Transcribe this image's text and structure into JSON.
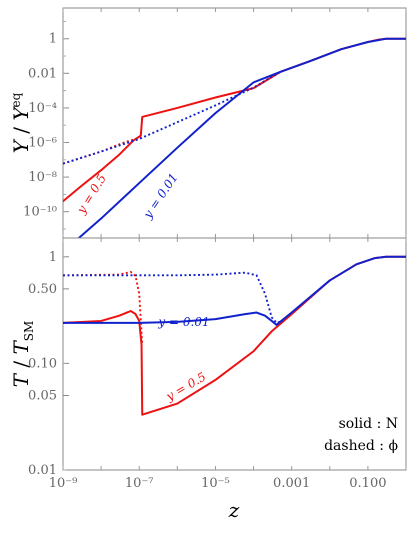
{
  "chart_data": {
    "type": "line",
    "colors": {
      "red": "#ee1111",
      "blue": "#1122cc"
    },
    "x_scale": "log",
    "xlim": [
      1e-09,
      1
    ],
    "xlabel": "z",
    "x_ticks": [
      {
        "value": 1e-09,
        "label": "10⁻⁹"
      },
      {
        "value": 1e-07,
        "label": "10⁻⁷"
      },
      {
        "value": 1e-05,
        "label": "10⁻⁵"
      },
      {
        "value": 0.001,
        "label": "0.001"
      },
      {
        "value": 0.1,
        "label": "0.100"
      }
    ],
    "panels": [
      {
        "ylabel": "Y / Y^eq",
        "y_scale": "log",
        "ylim": [
          3e-12,
          60
        ],
        "y_ticks": [
          {
            "value": 1,
            "label": "1"
          },
          {
            "value": 0.01,
            "label": "0.01"
          },
          {
            "value": 0.0001,
            "label": "10⁻⁴"
          },
          {
            "value": 1e-06,
            "label": "10⁻⁶"
          },
          {
            "value": 1e-08,
            "label": "10⁻⁸"
          },
          {
            "value": 1e-10,
            "label": "10⁻¹⁰"
          }
        ],
        "annotations": [
          {
            "text": "y = 0.5",
            "color": "red"
          },
          {
            "text": "y = 0.01",
            "color": "blue"
          }
        ],
        "series": [
          {
            "color": "red",
            "dash": false,
            "points": [
              [
                1e-09,
                4e-10
              ],
              [
                3e-09,
                3e-09
              ],
              [
                1e-08,
                2.5e-08
              ],
              [
                3e-08,
                2e-07
              ],
              [
                7e-08,
                1.3e-06
              ],
              [
                1.1e-07,
                2.5e-06
              ],
              [
                1.2e-07,
                3e-05
              ],
              [
                1e-06,
                0.0001
              ],
              [
                1e-05,
                0.0004
              ],
              [
                0.0001,
                0.0014
              ],
              [
                0.0005,
                0.012
              ],
              [
                0.003,
                0.05
              ],
              [
                0.02,
                0.25
              ],
              [
                0.1,
                0.65
              ],
              [
                0.2,
                0.9
              ],
              [
                0.3,
                1
              ],
              [
                1,
                1
              ]
            ]
          },
          {
            "color": "red",
            "dash": true,
            "points": [
              [
                1e-09,
                6e-08
              ],
              [
                1e-08,
                3e-07
              ],
              [
                4e-08,
                1e-06
              ],
              [
                8e-08,
                1.6e-06
              ],
              [
                1.1e-07,
                2.2e-06
              ]
            ]
          },
          {
            "color": "blue",
            "dash": false,
            "points": [
              [
                2.6e-09,
                3e-12
              ],
              [
                1e-08,
                4e-11
              ],
              [
                1e-07,
                4.5e-09
              ],
              [
                1e-06,
                5e-07
              ],
              [
                1e-05,
                5e-05
              ],
              [
                0.0001,
                0.003
              ],
              [
                0.0005,
                0.012
              ],
              [
                0.003,
                0.05
              ],
              [
                0.02,
                0.25
              ],
              [
                0.1,
                0.65
              ],
              [
                0.3,
                1
              ],
              [
                1,
                1
              ]
            ]
          },
          {
            "color": "blue",
            "dash": true,
            "points": [
              [
                1e-09,
                6e-08
              ],
              [
                1e-08,
                3e-07
              ],
              [
                1e-07,
                1.6e-06
              ],
              [
                1e-06,
                1.5e-05
              ],
              [
                1e-05,
                0.00014
              ],
              [
                0.0001,
                0.0015
              ],
              [
                0.0005,
                0.012
              ]
            ]
          }
        ]
      },
      {
        "ylabel": "T / T_SM",
        "y_scale": "log",
        "ylim": [
          0.01,
          1.5
        ],
        "y_ticks": [
          {
            "value": 1,
            "label": "1"
          },
          {
            "value": 0.5,
            "label": "0.50"
          },
          {
            "value": 0.1,
            "label": "0.10"
          },
          {
            "value": 0.05,
            "label": "0.05"
          },
          {
            "value": 0.01,
            "label": "0.01"
          }
        ],
        "annotations": [
          {
            "text": "y = 0.01",
            "color": "blue"
          },
          {
            "text": "y = 0.5",
            "color": "red"
          }
        ],
        "legend": [
          "solid : N",
          "dashed : ϕ"
        ],
        "series": [
          {
            "color": "red",
            "dash": false,
            "points": [
              [
                1e-09,
                0.24
              ],
              [
                1e-08,
                0.25
              ],
              [
                3e-08,
                0.28
              ],
              [
                6e-08,
                0.31
              ],
              [
                8e-08,
                0.29
              ],
              [
                1e-07,
                0.25
              ],
              [
                1.15e-07,
                0.15
              ],
              [
                1.2e-07,
                0.033
              ],
              [
                1e-06,
                0.042
              ],
              [
                1e-05,
                0.07
              ],
              [
                0.0001,
                0.13
              ],
              [
                0.0003,
                0.2
              ],
              [
                0.001,
                0.29
              ],
              [
                0.01,
                0.6
              ],
              [
                0.05,
                0.85
              ],
              [
                0.15,
                0.97
              ],
              [
                0.3,
                1
              ],
              [
                1,
                1
              ]
            ]
          },
          {
            "color": "red",
            "dash": true,
            "points": [
              [
                1e-09,
                0.67
              ],
              [
                3e-08,
                0.68
              ],
              [
                6e-08,
                0.72
              ],
              [
                8e-08,
                0.66
              ],
              [
                1e-07,
                0.45
              ],
              [
                1.2e-07,
                0.15
              ]
            ]
          },
          {
            "color": "blue",
            "dash": false,
            "points": [
              [
                1e-09,
                0.24
              ],
              [
                1e-07,
                0.24
              ],
              [
                1e-06,
                0.245
              ],
              [
                1e-05,
                0.26
              ],
              [
                6e-05,
                0.29
              ],
              [
                0.00012,
                0.3
              ],
              [
                0.0002,
                0.28
              ],
              [
                0.0003,
                0.25
              ],
              [
                0.0004,
                0.23
              ],
              [
                0.001,
                0.3
              ],
              [
                0.01,
                0.6
              ],
              [
                0.05,
                0.85
              ],
              [
                0.15,
                0.97
              ],
              [
                0.3,
                1
              ],
              [
                1,
                1
              ]
            ]
          },
          {
            "color": "blue",
            "dash": true,
            "points": [
              [
                1e-09,
                0.67
              ],
              [
                1e-06,
                0.67
              ],
              [
                1e-05,
                0.68
              ],
              [
                6e-05,
                0.71
              ],
              [
                0.00012,
                0.67
              ],
              [
                0.0002,
                0.45
              ],
              [
                0.0003,
                0.27
              ],
              [
                0.0004,
                0.24
              ],
              [
                0.0006,
                0.25
              ]
            ]
          }
        ]
      }
    ]
  }
}
